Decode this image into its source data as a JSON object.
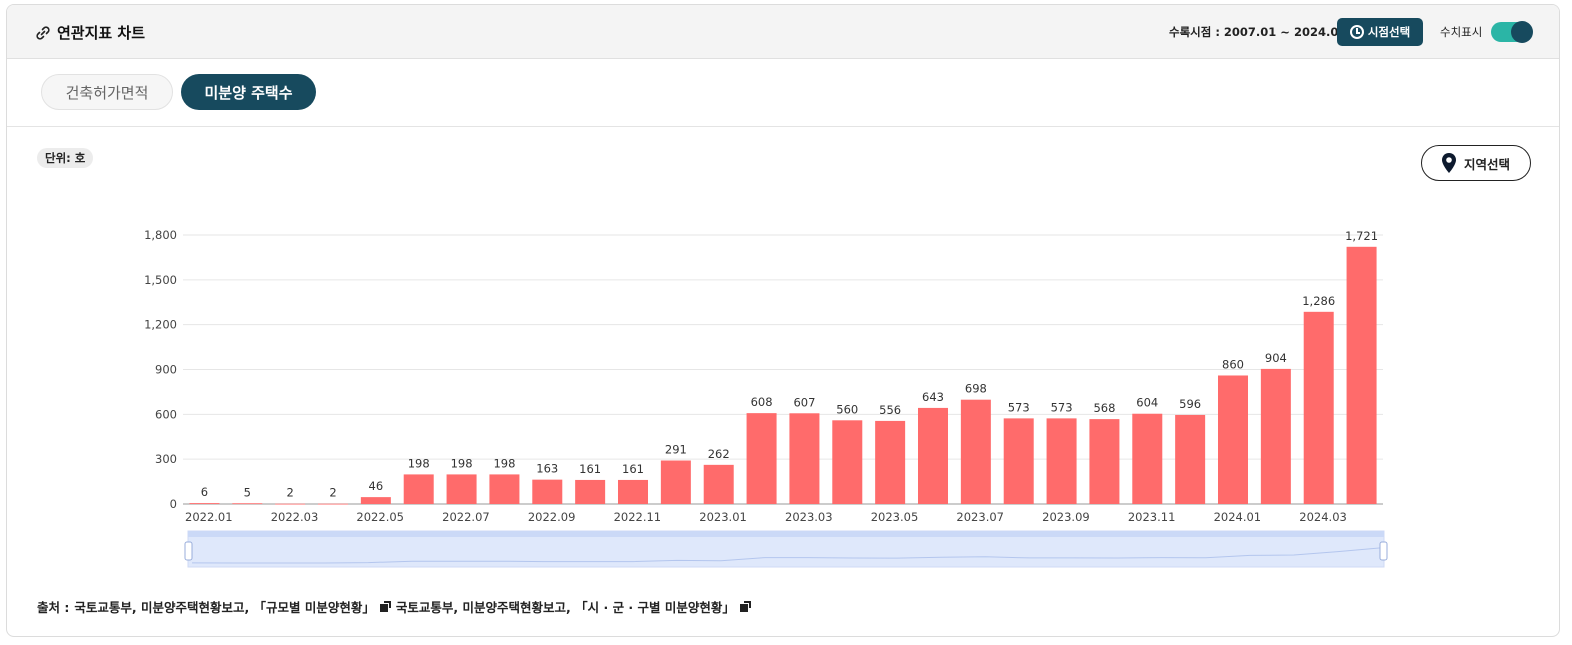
{
  "header": {
    "title": "연관지표 차트",
    "period_label": "수록시점 : 2007.01 ~ 2024.04",
    "period_button": "시점선택",
    "toggle_label": "수치표시",
    "toggle_on": true
  },
  "tabs": [
    {
      "label": "건축허가면적",
      "active": false
    },
    {
      "label": "미분양 주택수",
      "active": true
    }
  ],
  "unit_badge": "단위: 호",
  "region_button": "지역선택",
  "source": {
    "prefix": "출처 :",
    "items": [
      "국토교통부, 미분양주택현황보고, 「규모별 미분양현황」",
      "국토교통부, 미분양주택현황보고, 「시 · 군 · 구별 미분양현황」"
    ]
  },
  "colors": {
    "bar": "#ff6b6b",
    "accent": "#174a5e",
    "toggle": "#2bb5a6"
  },
  "chart_data": {
    "type": "bar",
    "title": "",
    "xlabel": "",
    "ylabel": "",
    "categories": [
      "2022.01",
      "2022.02",
      "2022.03",
      "2022.04",
      "2022.05",
      "2022.06",
      "2022.07",
      "2022.08",
      "2022.09",
      "2022.10",
      "2022.11",
      "2022.12",
      "2023.01",
      "2023.02",
      "2023.03",
      "2023.04",
      "2023.05",
      "2023.06",
      "2023.07",
      "2023.08",
      "2023.09",
      "2023.10",
      "2023.11",
      "2023.12",
      "2024.01",
      "2024.02",
      "2024.03",
      "2024.04"
    ],
    "values": [
      6,
      5,
      2,
      2,
      46,
      198,
      198,
      198,
      163,
      161,
      161,
      291,
      262,
      608,
      607,
      560,
      556,
      643,
      698,
      573,
      573,
      568,
      604,
      596,
      860,
      904,
      1286,
      1721
    ],
    "value_labels": [
      "6",
      "5",
      "2",
      "2",
      "46",
      "198",
      "198",
      "198",
      "163",
      "161",
      "161",
      "291",
      "262",
      "608",
      "607",
      "560",
      "556",
      "643",
      "698",
      "573",
      "573",
      "568",
      "604",
      "596",
      "860",
      "904",
      "1,286",
      "1,721"
    ],
    "x_tick_labels": [
      "2022.01",
      "",
      "2022.03",
      "",
      "2022.05",
      "",
      "2022.07",
      "",
      "2022.09",
      "",
      "2022.11",
      "",
      "2023.01",
      "",
      "2023.03",
      "",
      "2023.05",
      "",
      "2023.07",
      "",
      "2023.09",
      "",
      "2023.11",
      "",
      "2024.01",
      "",
      "2024.03",
      ""
    ],
    "y_ticks": [
      0,
      300,
      600,
      900,
      1200,
      1500,
      1800
    ],
    "y_tick_labels": [
      "0",
      "300",
      "600",
      "900",
      "1,200",
      "1,500",
      "1,800"
    ],
    "ylim": [
      0,
      1800
    ],
    "grid": true,
    "legend": "none",
    "show_values": true,
    "range_slider": true
  }
}
